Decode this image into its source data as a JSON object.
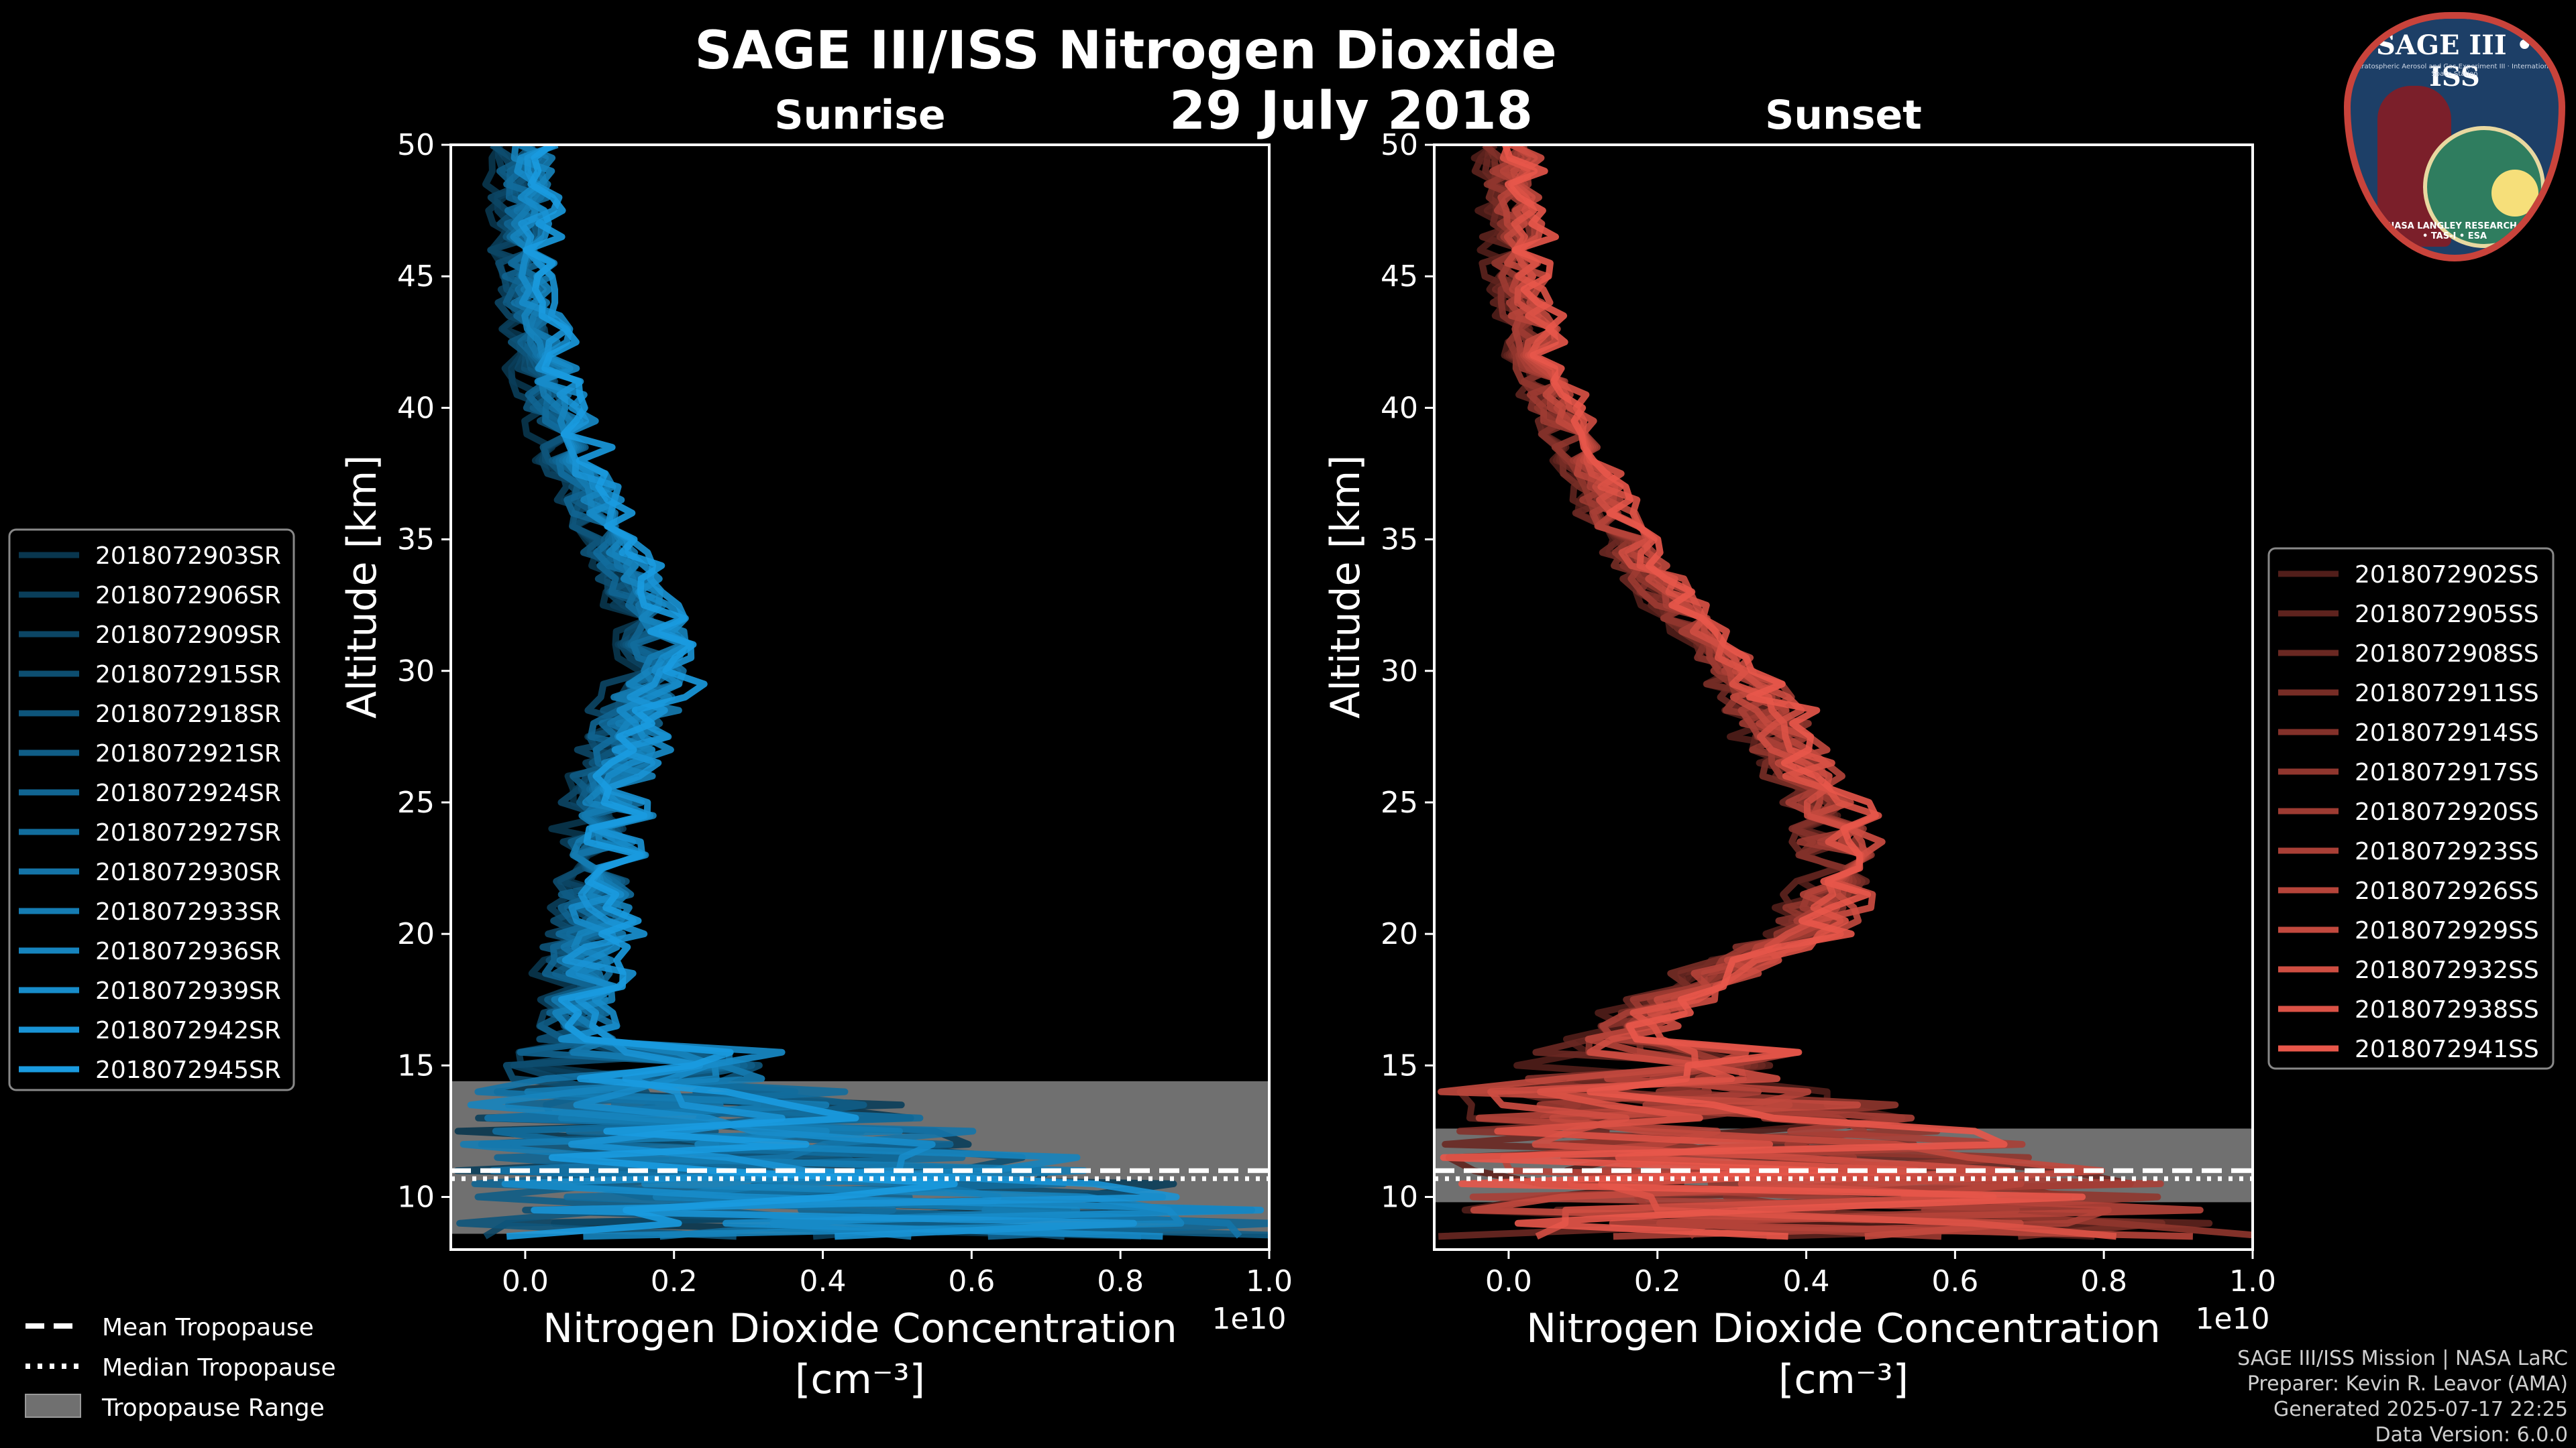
{
  "chart_data": {
    "title": "SAGE III/ISS Nitrogen Dioxide",
    "date": "29 July 2018",
    "panels": [
      {
        "subtitle": "Sunrise",
        "type": "line",
        "xlabel_line1": "Nitrogen Dioxide Concentration",
        "xlabel_line2": "[cm⁻³]",
        "ylabel": "Altitude [km]",
        "x_multiplier": "1e10",
        "xlim": [
          -0.1,
          1.0
        ],
        "ylim": [
          8,
          50
        ],
        "xticks": [
          "0.0",
          "0.2",
          "0.4",
          "0.6",
          "0.8",
          "1.0"
        ],
        "yticks": [
          "10",
          "15",
          "20",
          "25",
          "30",
          "35",
          "40",
          "45",
          "50"
        ],
        "color_base": "#1a9be0",
        "profile_altitudes": [
          50,
          47,
          44,
          41,
          38,
          35,
          32,
          30,
          28,
          26,
          24,
          22,
          20,
          18,
          16,
          14,
          12,
          10
        ],
        "profile_mean_values": [
          0.0,
          0.0,
          0.01,
          0.03,
          0.07,
          0.11,
          0.17,
          0.18,
          0.14,
          0.12,
          0.11,
          0.1,
          0.09,
          0.07,
          0.08,
          0.1,
          0.2,
          0.35
        ],
        "tropopause": {
          "mean": 11.0,
          "median": 11.0,
          "range": [
            8.6,
            14.4
          ]
        },
        "series": [
          {
            "name": "2018072903SR"
          },
          {
            "name": "2018072906SR"
          },
          {
            "name": "2018072909SR"
          },
          {
            "name": "2018072915SR"
          },
          {
            "name": "2018072918SR"
          },
          {
            "name": "2018072921SR"
          },
          {
            "name": "2018072924SR"
          },
          {
            "name": "2018072927SR"
          },
          {
            "name": "2018072930SR"
          },
          {
            "name": "2018072933SR"
          },
          {
            "name": "2018072936SR"
          },
          {
            "name": "2018072939SR"
          },
          {
            "name": "2018072942SR"
          },
          {
            "name": "2018072945SR"
          }
        ]
      },
      {
        "subtitle": "Sunset",
        "type": "line",
        "xlabel_line1": "Nitrogen Dioxide Concentration",
        "xlabel_line2": "[cm⁻³]",
        "ylabel": "Altitude [km]",
        "x_multiplier": "1e10",
        "xlim": [
          -0.1,
          1.0
        ],
        "ylim": [
          8,
          50
        ],
        "xticks": [
          "0.0",
          "0.2",
          "0.4",
          "0.6",
          "0.8",
          "1.0"
        ],
        "yticks": [
          "10",
          "15",
          "20",
          "25",
          "30",
          "35",
          "40",
          "45",
          "50"
        ],
        "color_base": "#e8574a",
        "profile_altitudes": [
          50,
          47,
          44,
          41,
          38,
          35,
          32,
          30,
          28,
          26,
          24,
          22,
          20,
          18,
          16,
          14,
          12,
          10
        ],
        "profile_mean_values": [
          0.0,
          0.01,
          0.02,
          0.05,
          0.1,
          0.15,
          0.24,
          0.31,
          0.36,
          0.4,
          0.44,
          0.45,
          0.4,
          0.24,
          0.15,
          0.12,
          0.25,
          0.35
        ],
        "tropopause": {
          "mean": 11.0,
          "median": 11.0,
          "range": [
            9.8,
            12.6
          ]
        },
        "series": [
          {
            "name": "2018072902SS"
          },
          {
            "name": "2018072905SS"
          },
          {
            "name": "2018072908SS"
          },
          {
            "name": "2018072911SS"
          },
          {
            "name": "2018072914SS"
          },
          {
            "name": "2018072917SS"
          },
          {
            "name": "2018072920SS"
          },
          {
            "name": "2018072923SS"
          },
          {
            "name": "2018072926SS"
          },
          {
            "name": "2018072929SS"
          },
          {
            "name": "2018072932SS"
          },
          {
            "name": "2018072938SS"
          },
          {
            "name": "2018072941SS"
          }
        ]
      }
    ],
    "legend_bottom": [
      "Mean Tropopause",
      "Median Tropopause",
      "Tropopause Range"
    ],
    "footer": [
      "SAGE III/ISS Mission | NASA LaRC",
      "Preparer: Kevin R. Leavor (AMA)",
      "Generated 2025-07-17 22:25",
      "Data Version: 6.0.0"
    ]
  },
  "badge": {
    "title": "SAGE III • ISS",
    "subtitle": "Stratospheric Aerosol and Gas Experiment III · International Space Station",
    "ring_text": "BALL • NASA LANGLEY RESEARCH CENTER • TAS-I • ESA"
  }
}
